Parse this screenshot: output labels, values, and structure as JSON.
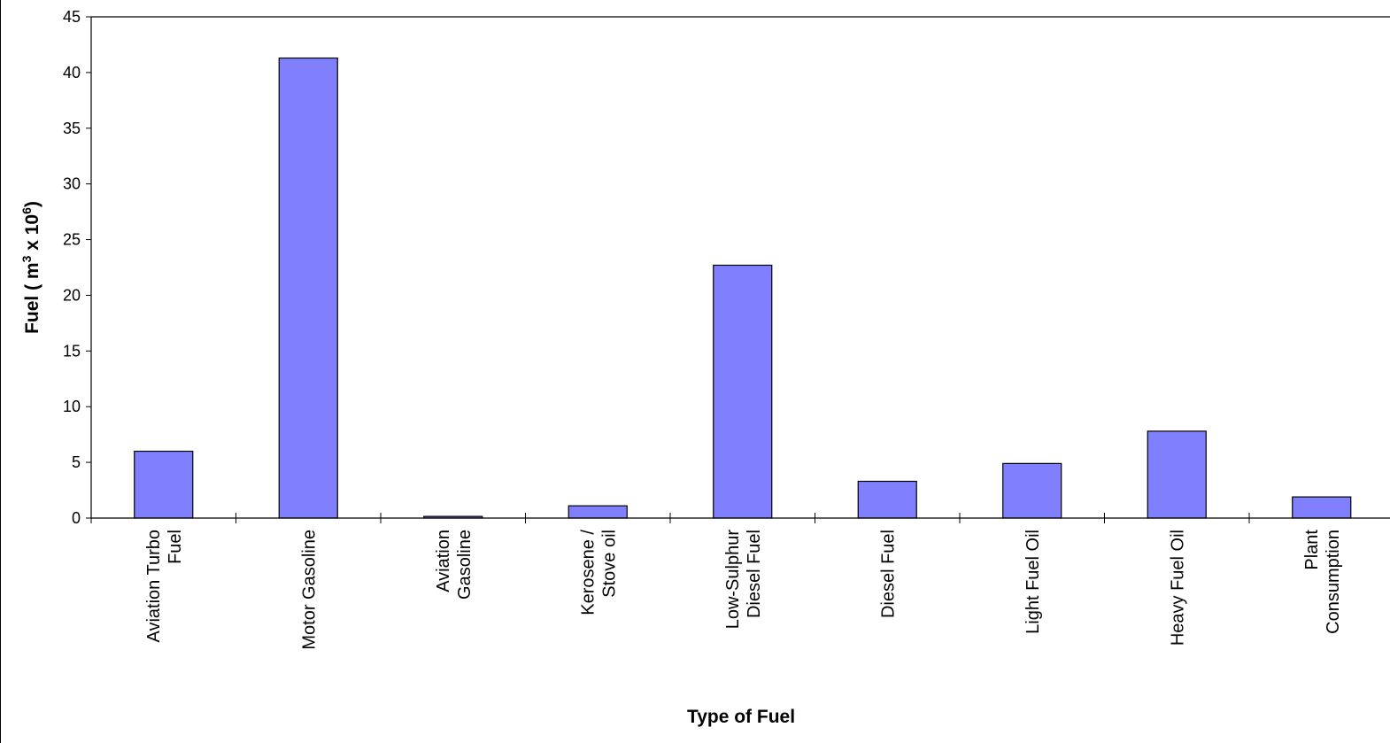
{
  "chart_data": {
    "type": "bar",
    "title": "",
    "xlabel": "Type of Fuel",
    "ylabel": "Fuel ( m3 x 106)",
    "ylabel_parts": {
      "base": "Fuel ( m",
      "sup1": "3",
      "mid": " x 10",
      "sup2": "6",
      "end": ")"
    },
    "categories": [
      [
        "Aviation Turbo",
        "Fuel"
      ],
      [
        "Motor Gasoline"
      ],
      [
        "Aviation",
        "Gasoline"
      ],
      [
        "Kerosene /",
        "Stove oil"
      ],
      [
        "Low-Sulphur",
        "Diesel Fuel"
      ],
      [
        "Diesel Fuel"
      ],
      [
        "Light Fuel Oil"
      ],
      [
        "Heavy Fuel Oil"
      ],
      [
        "Plant",
        "Consumption"
      ]
    ],
    "values": [
      6.0,
      41.3,
      0.15,
      1.1,
      22.7,
      3.3,
      4.9,
      7.8,
      1.9
    ],
    "ylim": [
      0,
      45
    ],
    "yticks": [
      0,
      5,
      10,
      15,
      20,
      25,
      30,
      35,
      40,
      45
    ],
    "grid": false,
    "bar_color": "#8080ff",
    "bar_edge_color": "#000000"
  }
}
